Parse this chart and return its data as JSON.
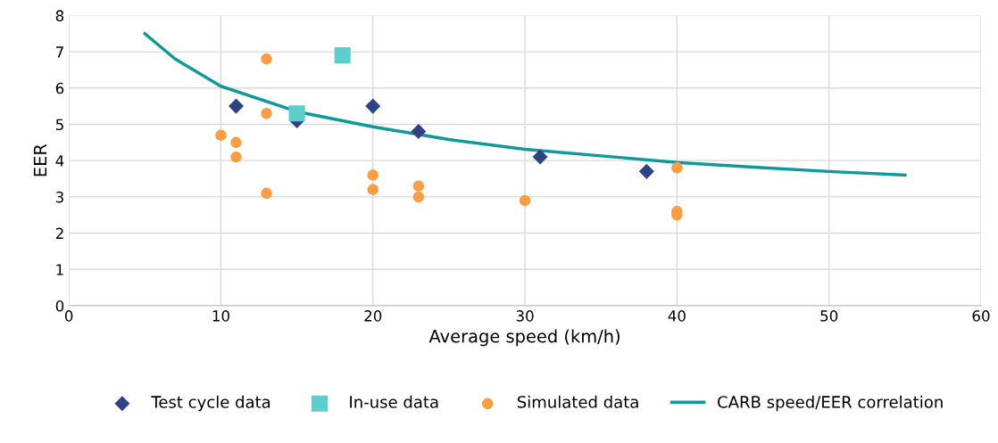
{
  "chart_data": {
    "type": "scatter",
    "xlabel": "Average speed (km/h)",
    "ylabel": "EER",
    "xlim": [
      0,
      60
    ],
    "ylim": [
      0,
      8
    ],
    "xticks": [
      0,
      10,
      20,
      30,
      40,
      50,
      60
    ],
    "yticks": [
      0,
      1,
      2,
      3,
      4,
      5,
      6,
      7,
      8
    ],
    "grid": true,
    "legend": "bottom",
    "series": [
      {
        "name": "Test cycle data",
        "marker": "diamond",
        "color": "#2e4285",
        "x": [
          11,
          15,
          20,
          23,
          31,
          38
        ],
        "values": [
          5.5,
          5.1,
          5.5,
          4.8,
          4.1,
          3.7
        ]
      },
      {
        "name": "In-use data",
        "marker": "square",
        "color": "#5ccfcc",
        "x": [
          15,
          18
        ],
        "values": [
          5.3,
          6.9
        ]
      },
      {
        "name": "Simulated data",
        "marker": "circle",
        "color": "#fa9e46",
        "x": [
          10,
          11,
          11,
          13,
          13,
          13,
          20,
          20,
          23,
          23,
          30,
          40,
          40,
          40
        ],
        "values": [
          4.7,
          4.5,
          4.1,
          6.8,
          5.3,
          3.1,
          3.6,
          3.2,
          3.3,
          3.0,
          2.9,
          3.8,
          2.6,
          2.5
        ]
      },
      {
        "name": "CARB speed/EER correlation",
        "type": "line",
        "marker": "none",
        "color": "#11999a",
        "x": [
          5,
          7,
          10,
          15,
          20,
          25,
          30,
          35,
          40,
          45,
          50,
          55
        ],
        "values": [
          7.5,
          6.8,
          6.05,
          5.35,
          4.93,
          4.58,
          4.31,
          4.13,
          3.95,
          3.82,
          3.7,
          3.6
        ]
      }
    ]
  }
}
